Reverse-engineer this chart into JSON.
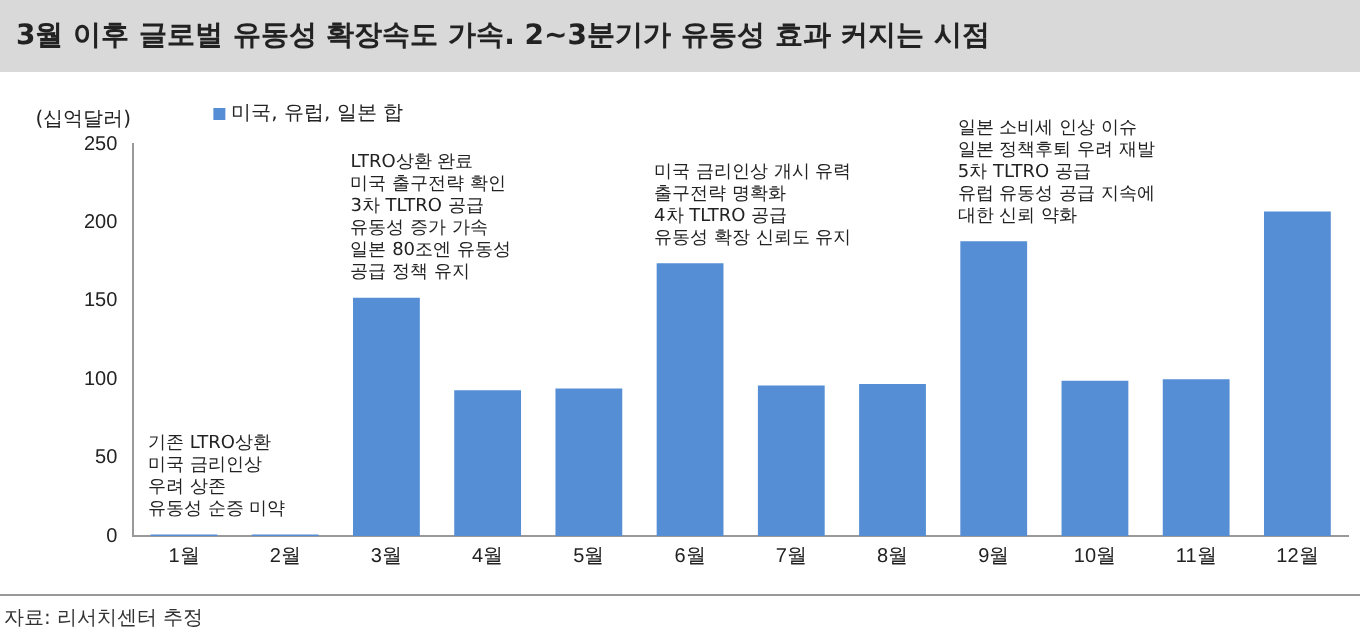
{
  "chart_data": {
    "type": "bar",
    "title": "3월 이후 글로벌 유동성 확장속도 가속. 2~3분기가 유동성 효과 커지는 시점",
    "ylabel": "(십억달러)",
    "categories": [
      "1월",
      "2월",
      "3월",
      "4월",
      "5월",
      "6월",
      "7월",
      "8월",
      "9월",
      "10월",
      "11월",
      "12월"
    ],
    "series": [
      {
        "name": "미국, 유럽, 일본 합",
        "color": "#558ed5",
        "values": [
          1,
          1,
          152,
          93,
          94,
          174,
          96,
          97,
          188,
          99,
          100,
          207
        ]
      }
    ],
    "ylim": [
      0,
      250
    ],
    "yticks": [
      0,
      50,
      100,
      150,
      200,
      250
    ],
    "grid": false,
    "legend": "top left",
    "annotations": [
      {
        "text": "기존 LTRO상환\n미국 금리인상\n우려 상존\n유동성 순증 미약",
        "x": "1월",
        "y": 1
      },
      {
        "text": "LTRO상환 완료\n미국 출구전략 확인\n3차 TLTRO 공급\n유동성 증가 가속\n일본 80조엔 유동성\n공급 정책 유지",
        "x": "3월",
        "y": 152
      },
      {
        "text": "미국 금리인상 개시 유력\n출구전략 명확화\n4차 TLTRO 공급\n유동성 확장 신뢰도 유지",
        "x": "6월",
        "y": 174
      },
      {
        "text": "일본 소비세 인상 이슈\n일본 정책후퇴 우려 재발\n5차 TLTRO 공급\n유럽 유동성 공급 지속에\n대한 신뢰 약화",
        "x": "9월",
        "y": 188
      },
      "자료: 리서치센터 추정"
    ]
  }
}
